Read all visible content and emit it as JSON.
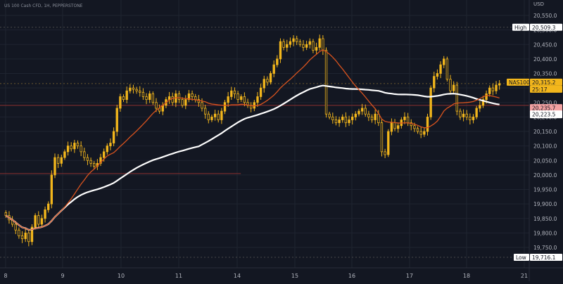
{
  "header": {
    "symbol_line": "US 100 Cash CFD, 1H, PEPPERSTONE"
  },
  "colors": {
    "background": "#131722",
    "candle": "#f2b61c",
    "ma_slow": "#ffffff",
    "ma_fast": "#d9531e",
    "grid": "#1f2430",
    "axis_text": "#b2b5be",
    "level_line": "#8b3030",
    "tag_bg": "#ffffff",
    "tag_text": "#131722",
    "tag_red": "#f2a1a1"
  },
  "chart_data": {
    "type": "candlestick",
    "y_axis_unit": "USD",
    "ylim": [
      19700,
      20600
    ],
    "y_ticks": [
      "20,550.0",
      "20,500.0",
      "20,450.0",
      "20,400.0",
      "20,350.0",
      "20,300.0",
      "20,250.0",
      "20,200.0",
      "20,150.0",
      "20,100.0",
      "20,050.0",
      "20,000.0",
      "19,950.0",
      "19,900.0",
      "19,850.0",
      "19,800.0",
      "19,750.0"
    ],
    "y_tick_values": [
      20550,
      20500,
      20450,
      20400,
      20350,
      20300,
      20250,
      20200,
      20150,
      20100,
      20050,
      20000,
      19950,
      19900,
      19850,
      19800,
      19750
    ],
    "x_ticks": [
      "8",
      "9",
      "10",
      "11",
      "14",
      "15",
      "16",
      "17",
      "18",
      "21"
    ],
    "high": {
      "label": "High",
      "value_text": "20,509.3",
      "value": 20509.3
    },
    "low": {
      "label": "Low",
      "value_text": "19,716.1",
      "value": 19716.1
    },
    "last": {
      "label": "NAS100",
      "value_text": "20,315.2",
      "value": 20315.2,
      "countdown": "25:17"
    },
    "tags": [
      {
        "value_text": "20,235.7",
        "value": 20235.7,
        "style": "red"
      },
      {
        "value_text": "20,223.5",
        "value": 20223.5,
        "style": "white"
      }
    ],
    "level_lines": [
      {
        "value": 20240,
        "x_from": 0,
        "x_to": 1
      },
      {
        "value": 20005,
        "x_from": 0,
        "x_to": 0.455
      }
    ],
    "closes": [
      19860,
      19845,
      19830,
      19810,
      19790,
      19780,
      19800,
      19770,
      19820,
      19860,
      19830,
      19850,
      19880,
      19900,
      20000,
      20060,
      20040,
      20060,
      20080,
      20100,
      20090,
      20110,
      20100,
      20080,
      20060,
      20050,
      20040,
      20030,
      20040,
      20060,
      20080,
      20100,
      20110,
      20150,
      20230,
      20270,
      20260,
      20290,
      20300,
      20295,
      20290,
      20285,
      20270,
      20260,
      20280,
      20250,
      20230,
      20220,
      20240,
      20260,
      20270,
      20250,
      20280,
      20260,
      20240,
      20260,
      20280,
      20270,
      20260,
      20250,
      20230,
      20210,
      20190,
      20200,
      20210,
      20190,
      20220,
      20250,
      20270,
      20290,
      20280,
      20260,
      20270,
      20250,
      20240,
      20230,
      20250,
      20270,
      20300,
      20330,
      20320,
      20350,
      20380,
      20400,
      20460,
      20440,
      20450,
      20460,
      20470,
      20460,
      20450,
      20440,
      20450,
      20460,
      20430,
      20440,
      20470,
      20430,
      20210,
      20200,
      20190,
      20180,
      20190,
      20200,
      20180,
      20190,
      20200,
      20210,
      20220,
      20230,
      20210,
      20200,
      20190,
      20210,
      20180,
      20080,
      20070,
      20150,
      20180,
      20160,
      20170,
      20190,
      20200,
      20180,
      20170,
      20160,
      20150,
      20140,
      20150,
      20200,
      20300,
      20340,
      20350,
      20380,
      20400,
      20330,
      20290,
      20310,
      20220,
      20200,
      20210,
      20200,
      20190,
      20200,
      20230,
      20240,
      20260,
      20280,
      20300,
      20290,
      20310,
      20315
    ],
    "ma_slow": {
      "name": "",
      "from": 19865,
      "to": 20190
    },
    "ma_fast": {
      "name": "",
      "from": 19900,
      "to": 20255
    }
  }
}
